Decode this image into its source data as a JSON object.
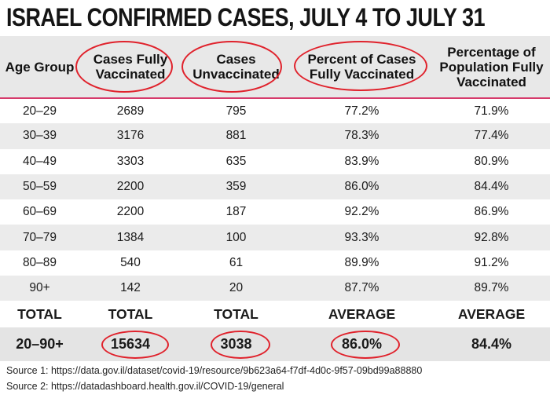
{
  "title": "ISRAEL CONFIRMED CASES, JULY 4 TO JULY 31",
  "chart_data": {
    "type": "table",
    "title": "ISRAEL CONFIRMED CASES, JULY 4 TO JULY 31",
    "columns": [
      {
        "line1": "Age Group",
        "line2": "",
        "line3": ""
      },
      {
        "line1": "Cases Fully",
        "line2": "Vaccinated",
        "line3": ""
      },
      {
        "line1": "Cases",
        "line2": "Unvaccinated",
        "line3": ""
      },
      {
        "line1": "Percent of Cases",
        "line2": "Fully Vaccinated",
        "line3": ""
      },
      {
        "line1": "Percentage of",
        "line2": "Population Fully",
        "line3": "Vaccinated"
      }
    ],
    "rows": [
      [
        "20–29",
        "2689",
        "795",
        "77.2%",
        "71.9%"
      ],
      [
        "30–39",
        "3176",
        "881",
        "78.3%",
        "77.4%"
      ],
      [
        "40–49",
        "3303",
        "635",
        "83.9%",
        "80.9%"
      ],
      [
        "50–59",
        "2200",
        "359",
        "86.0%",
        "84.4%"
      ],
      [
        "60–69",
        "2200",
        "187",
        "92.2%",
        "86.9%"
      ],
      [
        "70–79",
        "1384",
        "100",
        "93.3%",
        "92.8%"
      ],
      [
        "80–89",
        "540",
        "61",
        "89.9%",
        "91.2%"
      ],
      [
        "90+",
        "142",
        "20",
        "87.7%",
        "89.7%"
      ]
    ],
    "summary_labels": [
      "TOTAL",
      "TOTAL",
      "TOTAL",
      "AVERAGE",
      "AVERAGE"
    ],
    "summary_values": [
      "20–90+",
      "15634",
      "3038",
      "86.0%",
      "84.4%"
    ],
    "highlight_color": "#e0222c",
    "header_rule_color": "#d63a6b"
  },
  "sources": {
    "source1": "Source 1: https://data.gov.il/dataset/covid-19/resource/9b623a64-f7df-4d0c-9f57-09bd99a88880",
    "source2": "Source 2: https://datadashboard.health.gov.il/COVID-19/general"
  }
}
